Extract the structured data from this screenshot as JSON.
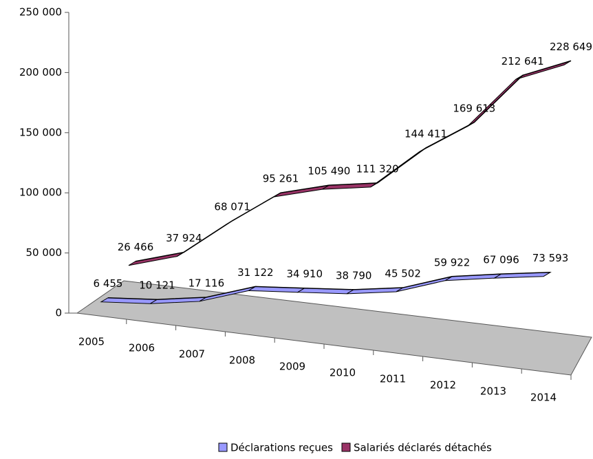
{
  "chart_data": {
    "type": "line",
    "categories": [
      "2005",
      "2006",
      "2007",
      "2008",
      "2009",
      "2010",
      "2011",
      "2012",
      "2013",
      "2014"
    ],
    "series": [
      {
        "name": "Déclarations reçues",
        "color": "#9999ff",
        "values": [
          6455,
          10121,
          17116,
          31122,
          34910,
          38790,
          45502,
          59922,
          67096,
          73593
        ],
        "value_labels": [
          "6 455",
          "10 121",
          "17 116",
          "31 122",
          "34 910",
          "38 790",
          "45 502",
          "59 922",
          "67 096",
          "73 593"
        ]
      },
      {
        "name": "Salariés déclarés détachés",
        "color": "#993366",
        "values": [
          26466,
          37924,
          68071,
          95261,
          105490,
          111320,
          144411,
          169613,
          212641,
          228649
        ],
        "value_labels": [
          "26 466",
          "37 924",
          "68 071",
          "95 261",
          "105 490",
          "111 320",
          "144 411",
          "169 613",
          "212 641",
          "228 649"
        ]
      }
    ],
    "ylim": [
      0,
      250000
    ],
    "yticks": [
      0,
      {
        "value": 50000,
        "label": "50 000"
      },
      {
        "value": 100000,
        "label": "100 000"
      },
      {
        "value": 150000,
        "label": "150 000"
      },
      {
        "value": 200000,
        "label": "200 000"
      },
      {
        "value": 250000,
        "label": "250 000"
      }
    ],
    "legend": "bottom"
  }
}
